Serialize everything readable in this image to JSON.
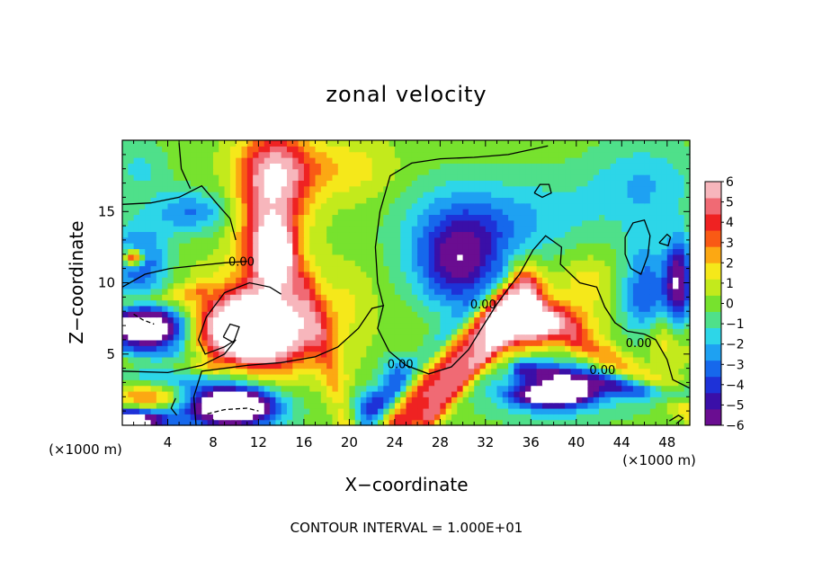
{
  "chart_data": {
    "type": "heatmap",
    "title": "zonal velocity",
    "xlabel": "X−coordinate",
    "ylabel": "Z−coordinate",
    "x_unit_left": "(×1000 m)",
    "x_unit_right": "(×1000 m)",
    "footnote": "CONTOUR INTERVAL = 1.000E+01",
    "xlim": [
      0,
      50
    ],
    "ylim": [
      0,
      20
    ],
    "x_ticks": [
      4,
      8,
      12,
      16,
      20,
      24,
      28,
      32,
      36,
      40,
      44,
      48
    ],
    "y_ticks": [
      5,
      10,
      15
    ],
    "colorbar": {
      "ticks": [
        6,
        5,
        4,
        3,
        2,
        1,
        0,
        -1,
        -2,
        -3,
        -4,
        -5,
        -6
      ],
      "range": [
        -6,
        6
      ],
      "colors": [
        "#6a0d91",
        "#3a0fa8",
        "#1e32d8",
        "#1668ec",
        "#1ea1f2",
        "#2dd6e8",
        "#4fe08a",
        "#77e22e",
        "#c3ea1c",
        "#f5e81a",
        "#fca813",
        "#f95a15",
        "#ef2222",
        "#f06a74",
        "#f7b6bc"
      ],
      "out_of_range_color": "#ffffff"
    },
    "contour_labels": [
      {
        "text": "0.00",
        "x": 10.5,
        "y": 11.2
      },
      {
        "text": "0.00",
        "x": 31.8,
        "y": 8.2
      },
      {
        "text": "0.00",
        "x": 24.5,
        "y": 4.0
      },
      {
        "text": "0.00",
        "x": 45.5,
        "y": 5.5
      },
      {
        "text": "0.00",
        "x": 42.3,
        "y": 3.6
      }
    ],
    "blobs": [
      {
        "x": 25,
        "y": 10,
        "rx": 40,
        "ry": 14,
        "v": 0.2
      },
      {
        "x": 13,
        "y": 14,
        "rx": 2.8,
        "ry": 5.5,
        "v": 5.2
      },
      {
        "x": 13.5,
        "y": 12,
        "rx": 1.4,
        "ry": 1.8,
        "v": 7.5
      },
      {
        "x": 14,
        "y": 18,
        "rx": 3.5,
        "ry": 2.5,
        "v": 3.5
      },
      {
        "x": 11.5,
        "y": 6.8,
        "rx": 4.5,
        "ry": 2.2,
        "v": 8
      },
      {
        "x": 11,
        "y": 6.5,
        "rx": 6,
        "ry": 3.3,
        "v": 4
      },
      {
        "x": 2,
        "y": 7,
        "rx": 3.5,
        "ry": 1.2,
        "v": -7
      },
      {
        "x": 3,
        "y": 6,
        "rx": 5,
        "ry": 2.5,
        "v": -3.5
      },
      {
        "x": 1.5,
        "y": 11.5,
        "rx": 2.5,
        "ry": 2.5,
        "v": -4
      },
      {
        "x": 1,
        "y": 11.8,
        "rx": 0.9,
        "ry": 0.6,
        "v": 7
      },
      {
        "x": 2.5,
        "y": 2,
        "rx": 3,
        "ry": 1,
        "v": 4
      },
      {
        "x": 1,
        "y": 0.4,
        "rx": 3,
        "ry": 0.8,
        "v": -8
      },
      {
        "x": 9,
        "y": 1.2,
        "rx": 5,
        "ry": 1.8,
        "v": -4
      },
      {
        "x": 10,
        "y": 1.4,
        "rx": 3.2,
        "ry": 1.2,
        "v": -8
      },
      {
        "x": 30,
        "y": 11,
        "rx": 3.5,
        "ry": 3,
        "v": -4
      },
      {
        "x": 29,
        "y": 13,
        "rx": 5,
        "ry": 4,
        "v": -2.5
      },
      {
        "x": 33,
        "y": 14,
        "rx": 6,
        "ry": 3,
        "v": -1.5
      },
      {
        "x": 38,
        "y": 15,
        "rx": 6,
        "ry": 3,
        "v": -1
      },
      {
        "x": 46,
        "y": 17,
        "rx": 5,
        "ry": 3,
        "v": -2
      },
      {
        "x": 34,
        "y": 8,
        "rx": 3,
        "ry": 3,
        "v": 3.5
      },
      {
        "x": 37,
        "y": 7.2,
        "rx": 3.2,
        "ry": 1.3,
        "v": 7
      },
      {
        "x": 38,
        "y": 2.2,
        "rx": 3,
        "ry": 0.7,
        "v": -8
      },
      {
        "x": 38,
        "y": 2.5,
        "rx": 6,
        "ry": 2,
        "v": -3.5
      },
      {
        "x": 46,
        "y": 8.5,
        "rx": 2,
        "ry": 4.5,
        "v": -4
      },
      {
        "x": 49,
        "y": 10,
        "rx": 1.2,
        "ry": 3,
        "v": -6.5
      },
      {
        "x": 47,
        "y": 6,
        "rx": 2.5,
        "ry": 2,
        "v": 3
      },
      {
        "x": 22,
        "y": 1.5,
        "rx": 2.5,
        "ry": 1.2,
        "v": -3
      },
      {
        "x": 24,
        "y": 3.5,
        "rx": 1.5,
        "ry": 1.5,
        "v": -2.5
      },
      {
        "x": 6,
        "y": 15,
        "rx": 3.5,
        "ry": 1.5,
        "v": -3
      },
      {
        "x": 1.5,
        "y": 18,
        "rx": 2.5,
        "ry": 2,
        "v": -1.5
      },
      {
        "x": 20,
        "y": 18,
        "rx": 4,
        "ry": 2,
        "v": 1.5
      },
      {
        "x": 41,
        "y": 10,
        "rx": 2.5,
        "ry": 2,
        "v": 1.5
      },
      {
        "x": 20,
        "y": 9,
        "rx": 2.5,
        "ry": 2.5,
        "v": 0.8
      },
      {
        "x": 6,
        "y": 3.5,
        "rx": 5,
        "ry": 1.5,
        "v": -2
      }
    ],
    "ridges": [
      {
        "x1": 24.5,
        "y1": 0.5,
        "x2": 35.5,
        "y2": 9.5,
        "w": 1.6,
        "v": 4.5
      },
      {
        "x1": 27,
        "y1": 0.5,
        "x2": 36,
        "y2": 8.5,
        "w": 0.7,
        "v": 3
      },
      {
        "x1": 21,
        "y1": 0,
        "x2": 33.5,
        "y2": 10.5,
        "w": 0.9,
        "v": -2
      },
      {
        "x1": 40,
        "y1": 6,
        "x2": 50,
        "y2": 1.5,
        "w": 1.0,
        "v": 3
      },
      {
        "x1": 35,
        "y1": 4,
        "x2": 50,
        "y2": 2,
        "w": 0.7,
        "v": -3.5
      },
      {
        "x1": 16,
        "y1": 10,
        "x2": 20,
        "y2": 0,
        "w": 1.2,
        "v": 2
      },
      {
        "x1": 0,
        "y1": 8.5,
        "x2": 7,
        "y2": 9.5,
        "w": 0.6,
        "v": 1.5
      },
      {
        "x1": 0,
        "y1": 4.5,
        "x2": 8,
        "y2": 4,
        "w": 0.6,
        "v": 2
      }
    ],
    "contours": [
      {
        "style": "solid",
        "points": [
          [
            6.5,
            0
          ],
          [
            6.3,
            2
          ],
          [
            7,
            3.8
          ],
          [
            11,
            4.2
          ],
          [
            14,
            4.4
          ],
          [
            17,
            4.8
          ],
          [
            19,
            5.5
          ],
          [
            20.8,
            6.8
          ],
          [
            22,
            8.2
          ],
          [
            23,
            8.4
          ],
          [
            22.5,
            6.8
          ],
          [
            23.5,
            5.2
          ],
          [
            25,
            4.2
          ],
          [
            27,
            3.6
          ],
          [
            29,
            4.1
          ],
          [
            30.5,
            5.3
          ],
          [
            31.5,
            6.6
          ],
          [
            33,
            8.5
          ],
          [
            34.2,
            9.8
          ],
          [
            35,
            10.6
          ],
          [
            36.2,
            12.3
          ],
          [
            37.3,
            13.3
          ],
          [
            38.7,
            12.5
          ],
          [
            38.6,
            11.3
          ],
          [
            40.3,
            10
          ],
          [
            41.8,
            9.7
          ],
          [
            42.5,
            8.3
          ],
          [
            43.4,
            7.2
          ],
          [
            44.5,
            6.6
          ],
          [
            46,
            6.4
          ],
          [
            47,
            6
          ],
          [
            48,
            4.6
          ],
          [
            48.5,
            3.2
          ],
          [
            50,
            2.6
          ]
        ]
      },
      {
        "style": "solid",
        "points": [
          [
            0,
            3.8
          ],
          [
            4,
            3.7
          ],
          [
            7,
            4.2
          ],
          [
            9,
            5
          ],
          [
            10,
            6
          ]
        ]
      },
      {
        "style": "solid",
        "points": [
          [
            0,
            9.7
          ],
          [
            2,
            10.6
          ],
          [
            4.2,
            11
          ],
          [
            6.5,
            11.2
          ],
          [
            9,
            11.4
          ],
          [
            11,
            11.5
          ]
        ]
      },
      {
        "style": "solid",
        "points": [
          [
            0,
            15.5
          ],
          [
            2.5,
            15.6
          ],
          [
            5,
            16
          ],
          [
            7,
            16.8
          ],
          [
            8.5,
            15.4
          ],
          [
            9.5,
            14.5
          ],
          [
            10,
            13
          ]
        ]
      },
      {
        "style": "solid",
        "points": [
          [
            5,
            19.8
          ],
          [
            5.2,
            18
          ],
          [
            6,
            16.6
          ]
        ]
      },
      {
        "style": "solid",
        "points": [
          [
            23,
            8.4
          ],
          [
            22.5,
            10
          ],
          [
            22.3,
            12.5
          ],
          [
            22.7,
            15
          ],
          [
            23.6,
            17.5
          ],
          [
            25.5,
            18.4
          ],
          [
            28,
            18.7
          ],
          [
            31,
            18.8
          ],
          [
            34,
            19
          ],
          [
            37.5,
            19.6
          ]
        ]
      },
      {
        "style": "solid",
        "points": [
          [
            10,
            6
          ],
          [
            9,
            5.5
          ],
          [
            7.3,
            5
          ],
          [
            6.7,
            6
          ],
          [
            7.4,
            7.6
          ],
          [
            9,
            9.3
          ],
          [
            11.2,
            10
          ],
          [
            13,
            9.7
          ],
          [
            14,
            9.2
          ]
        ]
      },
      {
        "style": "solid",
        "points": [
          [
            4.7,
            1.9
          ],
          [
            4.3,
            1.2
          ],
          [
            4.8,
            0.7
          ]
        ]
      },
      {
        "style": "dashed",
        "points": [
          [
            7.5,
            0.8
          ],
          [
            9,
            1.1
          ],
          [
            11,
            1.2
          ],
          [
            12,
            1
          ]
        ]
      },
      {
        "style": "dashed",
        "points": [
          [
            1,
            7.8
          ],
          [
            1.8,
            7.4
          ],
          [
            2.8,
            7.1
          ]
        ]
      },
      {
        "style": "solid",
        "points": [
          [
            8.9,
            6.2
          ],
          [
            9.5,
            7.1
          ],
          [
            10.3,
            6.9
          ],
          [
            9.8,
            5.8
          ],
          [
            8.9,
            6.2
          ]
        ]
      },
      {
        "style": "solid",
        "points": [
          [
            47.3,
            12.8
          ],
          [
            48,
            13.4
          ],
          [
            48.3,
            13.2
          ],
          [
            48.1,
            12.6
          ],
          [
            47.3,
            12.8
          ]
        ]
      },
      {
        "style": "solid",
        "points": [
          [
            36.3,
            16.3
          ],
          [
            36.8,
            16.9
          ],
          [
            37.6,
            16.9
          ],
          [
            37.8,
            16.3
          ],
          [
            37,
            16
          ],
          [
            36.3,
            16.3
          ]
        ]
      },
      {
        "style": "solid",
        "points": [
          [
            44.3,
            13.2
          ],
          [
            45,
            14.2
          ],
          [
            46,
            14.4
          ],
          [
            46.5,
            13.3
          ],
          [
            46.3,
            11.9
          ],
          [
            45.7,
            10.6
          ],
          [
            44.8,
            11
          ],
          [
            44.3,
            12
          ],
          [
            44.3,
            13.2
          ]
        ]
      },
      {
        "style": "solid",
        "points": [
          [
            48.2,
            0.3
          ],
          [
            49,
            0.7
          ],
          [
            49.4,
            0.5
          ],
          [
            48.8,
            0.1
          ]
        ]
      }
    ]
  }
}
